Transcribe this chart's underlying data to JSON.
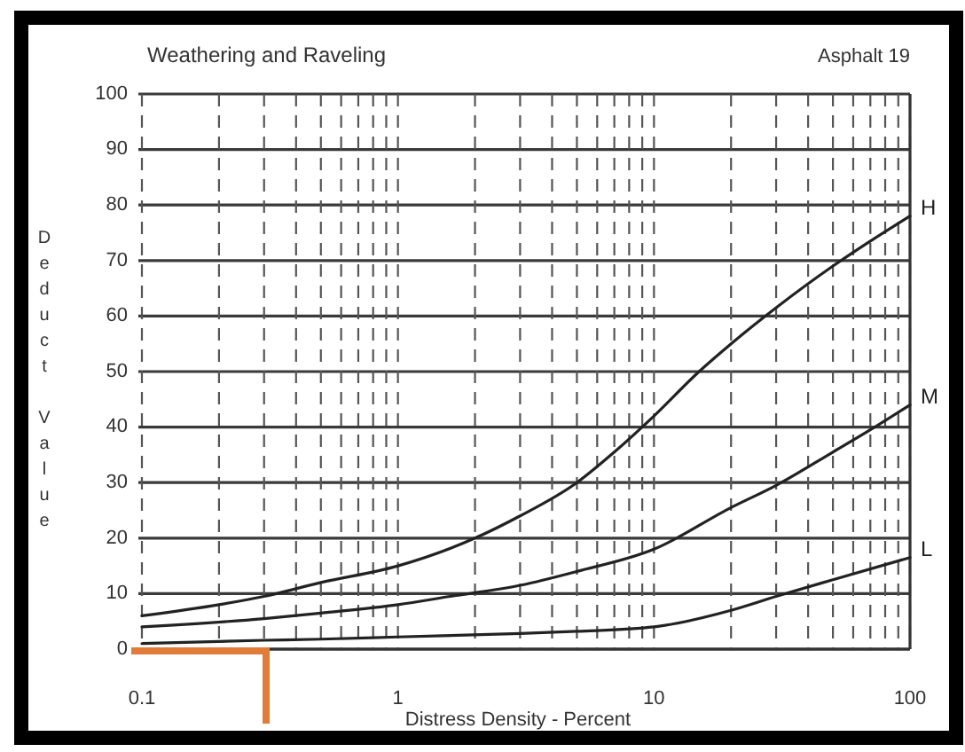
{
  "chart_data": {
    "type": "line",
    "title": "Weathering and Raveling",
    "subtitle": "Asphalt 19",
    "xlabel": "Distress Density - Percent",
    "ylabel": "Deduct Value",
    "log": "x",
    "xlim": [
      0.1,
      100
    ],
    "ylim": [
      0,
      100
    ],
    "xticks": [
      0.1,
      {
        "value": 0.2,
        "label": null
      },
      {
        "value": 0.3,
        "label": null
      },
      {
        "value": 0.4,
        "label": null
      },
      {
        "value": 0.5,
        "label": null
      },
      {
        "value": 0.6,
        "label": null
      },
      {
        "value": 0.7,
        "label": null
      },
      {
        "value": 0.8,
        "label": null
      },
      {
        "value": 0.9,
        "label": null
      },
      1,
      {
        "value": 2,
        "label": null
      },
      {
        "value": 3,
        "label": null
      },
      {
        "value": 4,
        "label": null
      },
      {
        "value": 5,
        "label": null
      },
      {
        "value": 6,
        "label": null
      },
      {
        "value": 7,
        "label": null
      },
      {
        "value": 8,
        "label": null
      },
      {
        "value": 9,
        "label": null
      },
      10,
      {
        "value": 20,
        "label": null
      },
      {
        "value": 30,
        "label": null
      },
      {
        "value": 40,
        "label": null
      },
      {
        "value": 50,
        "label": null
      },
      {
        "value": 60,
        "label": null
      },
      {
        "value": 70,
        "label": null
      },
      {
        "value": 80,
        "label": null
      },
      {
        "value": 90,
        "label": null
      },
      100
    ],
    "yticks": [
      0,
      10,
      20,
      30,
      40,
      50,
      60,
      70,
      80,
      90,
      100
    ],
    "grid": true,
    "series": [
      {
        "name": "H",
        "color": "#222222",
        "x": [
          0.1,
          0.2,
          0.3,
          0.5,
          1,
          2,
          3,
          5,
          7,
          10,
          15,
          20,
          30,
          50,
          70,
          100
        ],
        "values": [
          6,
          8,
          9.5,
          12,
          15,
          20,
          24,
          30,
          35.5,
          42,
          50,
          55,
          61.5,
          69,
          73.5,
          78
        ]
      },
      {
        "name": "M",
        "color": "#222222",
        "x": [
          0.1,
          0.3,
          0.5,
          1,
          1.6,
          3,
          5,
          10,
          20,
          30,
          50,
          70,
          100
        ],
        "values": [
          4,
          5.5,
          6.5,
          8,
          9.5,
          11.5,
          14,
          18,
          25.5,
          29.5,
          35.5,
          39.5,
          44
        ]
      },
      {
        "name": "L",
        "color": "#222222",
        "x": [
          0.1,
          0.3,
          0.5,
          1,
          3,
          5,
          10,
          20,
          30,
          50,
          100
        ],
        "values": [
          1,
          1.6,
          1.8,
          2.2,
          2.8,
          3.2,
          4,
          7,
          9.5,
          12.5,
          16.5
        ]
      }
    ]
  }
}
